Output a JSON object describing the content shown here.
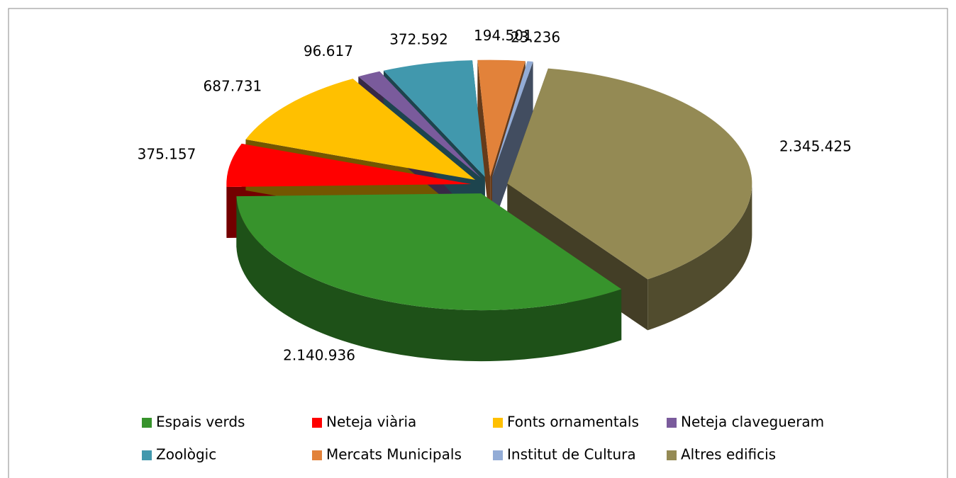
{
  "chart_data": {
    "type": "pie3d",
    "categories": [
      "Espais verds",
      "Neteja viària",
      "Fonts ornamentals",
      "Neteja clavegueram",
      "Zoològic",
      "Mercats Municipals",
      "Institut de Cultura",
      "Altres edificis"
    ],
    "values": [
      2140936,
      375157,
      687731,
      96617,
      372592,
      194501,
      23236,
      2345425
    ],
    "value_labels": [
      "2.140.936",
      "375.157",
      "687.731",
      "96.617",
      "372.592",
      "194.501",
      "23.236",
      "2.345.425"
    ],
    "colors": [
      "#37932c",
      "#ff0000",
      "#ffc000",
      "#7a5b9c",
      "#4198ad",
      "#e2823a",
      "#93acd6",
      "#948a54"
    ],
    "legend": "bottom"
  }
}
